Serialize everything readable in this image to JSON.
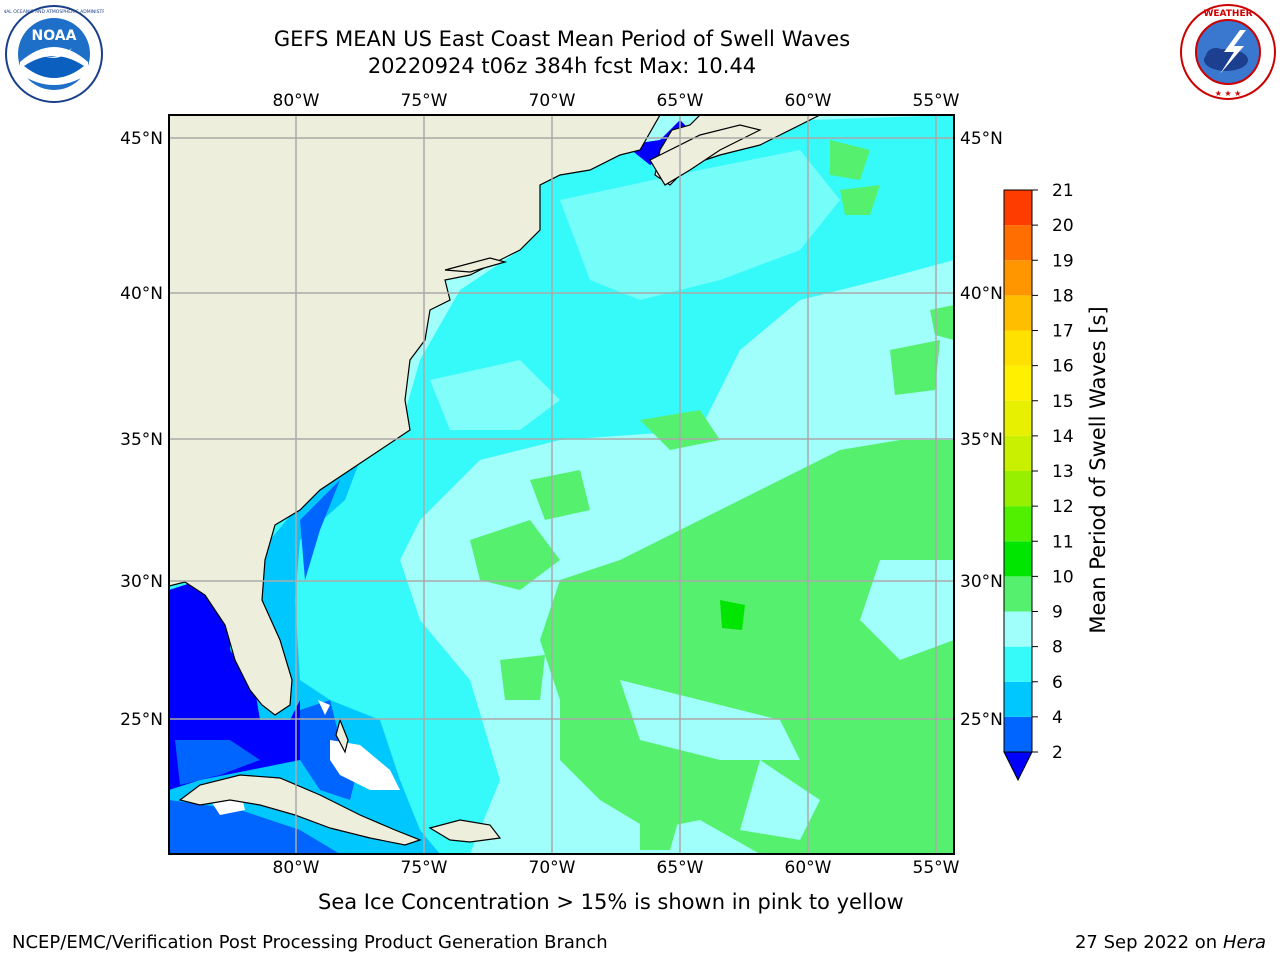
{
  "title_line1": "GEFS MEAN US East Coast Mean Period of Swell Waves",
  "title_line2": "20220924 t06z 384h fcst   Max: 10.44",
  "map": {
    "lon_labels": [
      "80°W",
      "75°W",
      "70°W",
      "65°W",
      "60°W",
      "55°W"
    ],
    "lat_labels": [
      "45°N",
      "40°N",
      "35°N",
      "30°N",
      "25°N"
    ]
  },
  "colorbar": {
    "label": "Mean Period of Swell Waves [s]",
    "ticks": [
      "2",
      "4",
      "6",
      "8",
      "9",
      "10",
      "11",
      "12",
      "13",
      "14",
      "15",
      "16",
      "17",
      "18",
      "19",
      "20",
      "21"
    ],
    "colors": [
      "#0064ff",
      "#00c8ff",
      "#36fafa",
      "#a0fffa",
      "#55f06e",
      "#00e600",
      "#50f000",
      "#96f000",
      "#c8f000",
      "#e6f000",
      "#fff000",
      "#ffe100",
      "#ffbe00",
      "#ff9600",
      "#ff6e00",
      "#ff3c00",
      "#ff0000"
    ],
    "under_color": "#0000ff"
  },
  "sea_ice_note": "Sea Ice Concentration > 15% is shown in pink to yellow",
  "footer": {
    "left": "NCEP/EMC/Verification Post Processing Product Generation Branch",
    "date": "27 Sep 2022 on",
    "machine": "Hera"
  },
  "logos": {
    "noaa_text": "NOAA",
    "noaa_ring": "NATIONAL OCEANIC AND ATMOSPHERIC ADMINISTRATION",
    "noaa_ring_bottom": "U.S. DEPARTMENT OF COMMERCE",
    "nws_ring": "NATIONAL WEATHER SERVICE"
  }
}
